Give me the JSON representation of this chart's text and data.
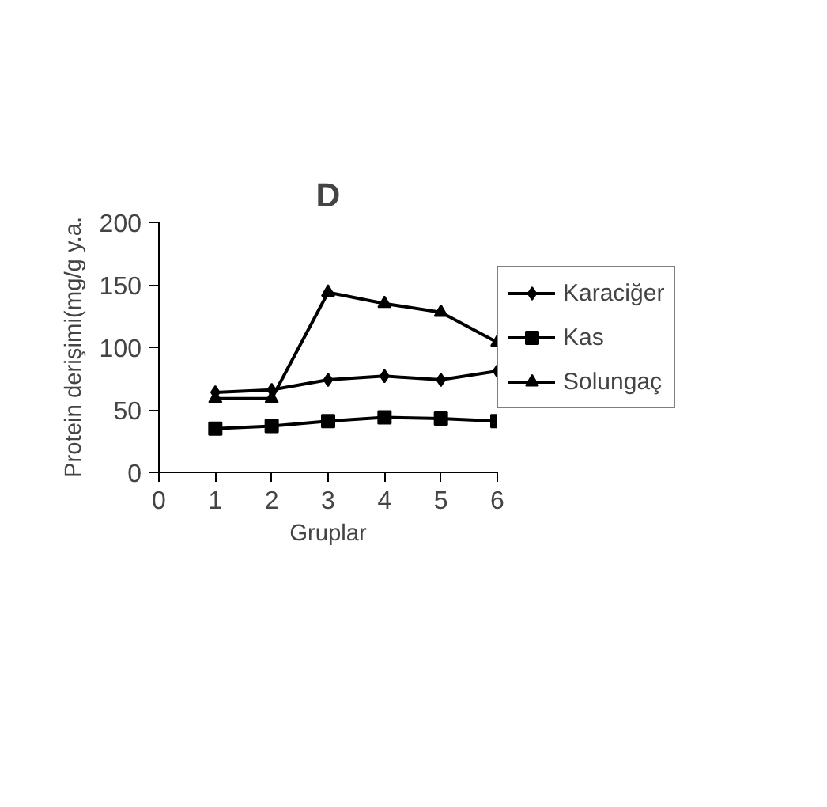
{
  "chart_data": {
    "type": "line",
    "title": "D",
    "xlabel": "Gruplar",
    "ylabel": "Protein derişimi(mg/g y.a.",
    "x": [
      1,
      2,
      3,
      4,
      5,
      6
    ],
    "series": [
      {
        "name": "Karaciğer",
        "color": "#000000",
        "marker": "diamond",
        "values": [
          64,
          66,
          74,
          77,
          74,
          81
        ]
      },
      {
        "name": "Kas",
        "color": "#000000",
        "marker": "square",
        "values": [
          35,
          37,
          41,
          44,
          43,
          41
        ]
      },
      {
        "name": "Solungaç",
        "color": "#000000",
        "marker": "triangle",
        "values": [
          59,
          59,
          144,
          135,
          128,
          104
        ]
      }
    ],
    "xlim": [
      0,
      6
    ],
    "xticks": [
      0,
      1,
      2,
      3,
      4,
      5,
      6
    ],
    "ylim": [
      0,
      200
    ],
    "yticks": [
      0,
      50,
      100,
      150,
      200
    ],
    "grid": false,
    "legend": "right",
    "line_style": "solid"
  }
}
